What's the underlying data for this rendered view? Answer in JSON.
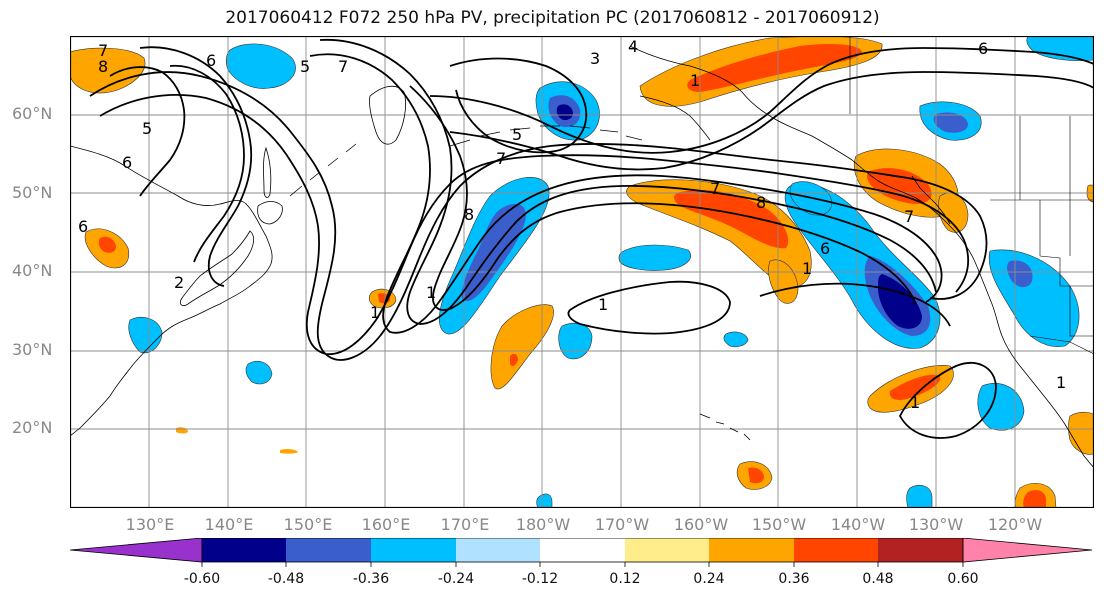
{
  "title": "2017060412 F072 250 hPa PV, precipitation PC (2017060812 - 2017060912)",
  "lat_labels": [
    "60°N",
    "50°N",
    "40°N",
    "30°N",
    "20°N"
  ],
  "lon_labels": [
    "130°E",
    "140°E",
    "150°E",
    "160°E",
    "170°E",
    "180°W",
    "170°W",
    "160°W",
    "150°W",
    "140°W",
    "130°W",
    "120°W"
  ],
  "map_extent": {
    "lon_west": 120,
    "lon_east": 250,
    "lat_south": 10,
    "lat_north": 70
  },
  "colorbar": {
    "ticks": [
      "-0.60",
      "-0.48",
      "-0.36",
      "-0.24",
      "-0.12",
      "0.12",
      "0.24",
      "0.36",
      "0.48",
      "0.60"
    ],
    "colors": [
      "#9932CC",
      "#00008B",
      "#3A5FCD",
      "#00BFFF",
      "#B0E2FF",
      "#FFFFFF",
      "#FFEC8B",
      "#FFA500",
      "#FF4500",
      "#B22222",
      "#FF82AB"
    ]
  },
  "contour_labels": [
    "8",
    "7",
    "6",
    "5",
    "5",
    "6",
    "7",
    "5",
    "7",
    "8",
    "1",
    "1",
    "6",
    "8",
    "1",
    "7",
    "7",
    "6",
    "4",
    "3",
    "2",
    "1",
    "6",
    "1",
    "1",
    "1"
  ],
  "anomaly_colors": {
    "neg_light": "#B0E2FF",
    "neg1": "#00BFFF",
    "neg2": "#3A5FCD",
    "neg3": "#00008B",
    "pos_light": "#FFEC8B",
    "pos1": "#FFA500",
    "pos2": "#FF4500",
    "pos3": "#B22222"
  }
}
